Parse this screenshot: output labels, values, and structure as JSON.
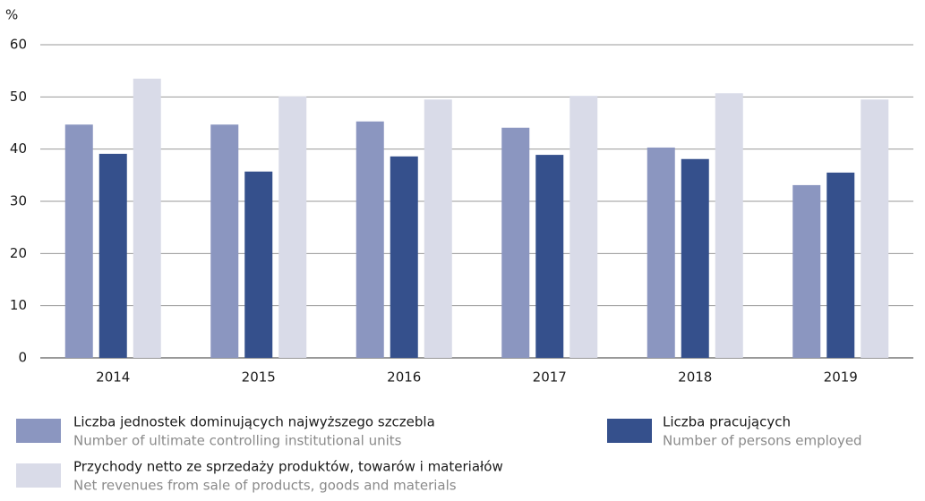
{
  "chart_data": {
    "type": "bar",
    "y_label": "%",
    "categories": [
      "2014",
      "2015",
      "2016",
      "2017",
      "2018",
      "2019"
    ],
    "series": [
      {
        "name": "Liczba jednostek dominujących najwyższego szczebla",
        "name_en": "Number of ultimate controlling institutional units",
        "color": "#8b96c0",
        "values": [
          44.7,
          44.7,
          45.3,
          44.1,
          40.3,
          33.1
        ]
      },
      {
        "name": "Liczba pracujących",
        "name_en": "Number of persons employed",
        "color": "#35508c",
        "values": [
          39.1,
          35.7,
          38.6,
          38.9,
          38.1,
          35.5
        ]
      },
      {
        "name": "Przychody netto ze sprzedaży produktów, towarów i materiałów",
        "name_en": "Net revenues from sale of products, goods and materials",
        "color": "#d9dbe8",
        "values": [
          53.5,
          50.1,
          49.5,
          50.2,
          50.7,
          49.5
        ]
      }
    ],
    "ylim": [
      0,
      60
    ],
    "yticks": [
      0,
      10,
      20,
      30,
      40,
      50,
      60
    ],
    "grid": true
  }
}
